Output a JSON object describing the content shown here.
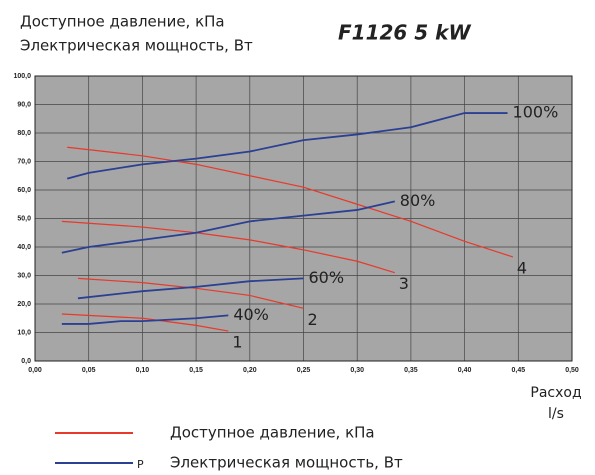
{
  "chart_data": {
    "type": "line",
    "title": "F1126 5 kW",
    "y_label_lines": [
      "Доступное давление, кПа",
      "Электрическая мощность, Вт"
    ],
    "x_label_lines": [
      "Расход",
      "l/s"
    ],
    "xlim": [
      0,
      0.5
    ],
    "ylim": [
      0,
      100
    ],
    "grid": true,
    "background": "#a6a6a6",
    "xticks": [
      {
        "value": 0,
        "label": "0,00"
      },
      {
        "value": 0.05,
        "label": "0,05"
      },
      {
        "value": 0.1,
        "label": "0,10"
      },
      {
        "value": 0.15,
        "label": "0,15"
      },
      {
        "value": 0.2,
        "label": "0,20"
      },
      {
        "value": 0.25,
        "label": "0,25"
      },
      {
        "value": 0.3,
        "label": "0,30"
      },
      {
        "value": 0.35,
        "label": "0,35"
      },
      {
        "value": 0.4,
        "label": "0,40"
      },
      {
        "value": 0.45,
        "label": "0,45"
      },
      {
        "value": 0.5,
        "label": "0,50"
      }
    ],
    "yticks": [
      {
        "value": 0,
        "label": "0,0"
      },
      {
        "value": 10,
        "label": "10,0"
      },
      {
        "value": 20,
        "label": "20,0"
      },
      {
        "value": 30,
        "label": "30,0"
      },
      {
        "value": 40,
        "label": "40,0"
      },
      {
        "value": 50,
        "label": "50,0"
      },
      {
        "value": 60,
        "label": "60,0"
      },
      {
        "value": 70,
        "label": "70,0"
      },
      {
        "value": 80,
        "label": "80,0"
      },
      {
        "value": 90,
        "label": "90,0"
      },
      {
        "value": 100,
        "label": "100,0"
      }
    ],
    "legend": [
      {
        "text": "Доступное давление, кПа",
        "color": "#e8392a"
      },
      {
        "text": "Электрическая мощность, Вт",
        "color": "#2b3f93",
        "marker": "P"
      }
    ],
    "series": [
      {
        "name": "4",
        "color": "#e8392a",
        "x": [
          0.03,
          0.1,
          0.15,
          0.2,
          0.25,
          0.3,
          0.35,
          0.4,
          0.445
        ],
        "values": [
          75,
          72,
          69,
          65,
          61,
          55,
          49,
          42,
          36.5
        ]
      },
      {
        "name": "3",
        "color": "#e8392a",
        "x": [
          0.025,
          0.1,
          0.15,
          0.2,
          0.25,
          0.3,
          0.335
        ],
        "values": [
          49,
          47,
          45,
          42.5,
          39,
          35,
          31
        ]
      },
      {
        "name": "2",
        "color": "#e8392a",
        "x": [
          0.04,
          0.1,
          0.15,
          0.2,
          0.25
        ],
        "values": [
          29,
          27.5,
          25.5,
          23,
          18.5
        ]
      },
      {
        "name": "1",
        "color": "#e8392a",
        "x": [
          0.025,
          0.1,
          0.15,
          0.18
        ],
        "values": [
          16.5,
          15,
          12.5,
          10.5
        ]
      },
      {
        "name": "100%",
        "color": "#2b3f93",
        "x": [
          0.03,
          0.05,
          0.1,
          0.15,
          0.2,
          0.25,
          0.3,
          0.35,
          0.4,
          0.44
        ],
        "values": [
          64,
          66,
          69,
          71,
          73.5,
          77.5,
          79.5,
          82,
          87,
          87
        ]
      },
      {
        "name": "80%",
        "color": "#2b3f93",
        "x": [
          0.025,
          0.05,
          0.1,
          0.15,
          0.2,
          0.25,
          0.3,
          0.335
        ],
        "values": [
          38,
          40,
          42.5,
          45,
          49,
          51,
          53,
          56
        ]
      },
      {
        "name": "60%",
        "color": "#2b3f93",
        "x": [
          0.04,
          0.1,
          0.15,
          0.2,
          0.25
        ],
        "values": [
          22,
          24.5,
          26,
          28,
          29
        ]
      },
      {
        "name": "40%",
        "color": "#2b3f93",
        "x": [
          0.025,
          0.05,
          0.08,
          0.1,
          0.15,
          0.18
        ],
        "values": [
          13,
          13,
          14,
          14,
          15,
          16
        ]
      }
    ]
  }
}
